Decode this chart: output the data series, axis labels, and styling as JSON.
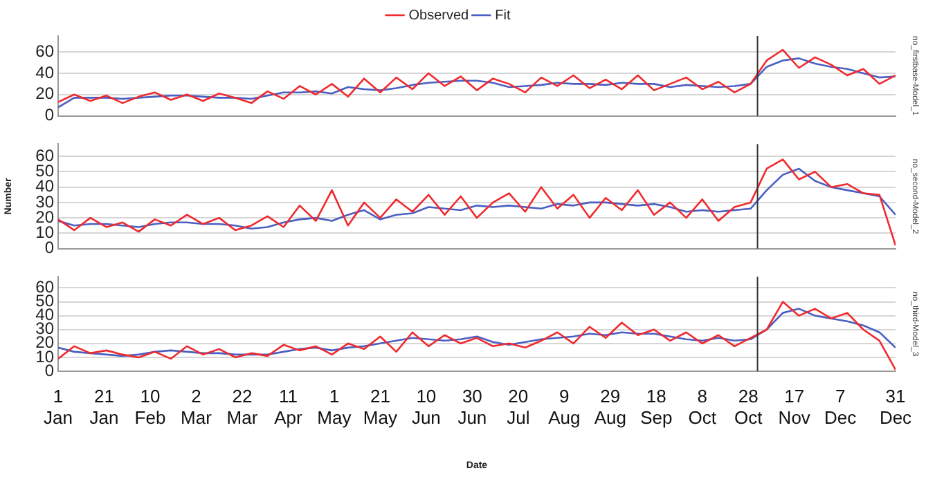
{
  "chart_data": [
    {
      "type": "line",
      "y2label": "no_firstbase-Model_1",
      "x": [
        "--01-01",
        "--01-08",
        "--01-15",
        "--01-22",
        "--01-29",
        "--02-05",
        "--02-12",
        "--02-19",
        "--02-26",
        "--03-05",
        "--03-12",
        "--03-19",
        "--03-26",
        "--04-02",
        "--04-09",
        "--04-16",
        "--04-23",
        "--04-30",
        "--05-07",
        "--05-14",
        "--05-21",
        "--05-28",
        "--06-04",
        "--06-11",
        "--06-18",
        "--06-25",
        "--07-02",
        "--07-09",
        "--07-16",
        "--07-23",
        "--07-30",
        "--08-06",
        "--08-13",
        "--08-20",
        "--08-27",
        "--09-03",
        "--09-10",
        "--09-17",
        "--09-24",
        "--10-01",
        "--10-08",
        "--10-15",
        "--10-22",
        "--10-29",
        "--11-05",
        "--11-12",
        "--11-19",
        "--11-26",
        "--12-03",
        "--12-10",
        "--12-17",
        "--12-24",
        "--12-31"
      ],
      "series": [
        {
          "name": "Observed",
          "color": "#f02a2e",
          "values": [
            13,
            20,
            14,
            19,
            12,
            18,
            22,
            15,
            20,
            14,
            21,
            17,
            12,
            23,
            16,
            28,
            20,
            30,
            18,
            35,
            22,
            36,
            25,
            40,
            28,
            37,
            24,
            35,
            30,
            22,
            36,
            28,
            38,
            26,
            34,
            25,
            38,
            24,
            30,
            36,
            25,
            32,
            22,
            30,
            52,
            62,
            45,
            55,
            48,
            38,
            44,
            30,
            38
          ]
        },
        {
          "name": "Fit",
          "color": "#4a5fc1",
          "values": [
            8,
            17,
            17,
            17,
            16,
            17,
            18,
            19,
            19,
            18,
            17,
            17,
            16,
            19,
            22,
            22,
            23,
            21,
            27,
            25,
            24,
            26,
            29,
            31,
            32,
            33,
            33,
            31,
            27,
            28,
            29,
            31,
            30,
            30,
            29,
            31,
            30,
            30,
            27,
            29,
            28,
            27,
            28,
            30,
            46,
            52,
            54,
            49,
            46,
            44,
            40,
            36,
            37
          ]
        }
      ],
      "xlim": [
        "--01-01",
        "--12-31"
      ],
      "ylim": [
        0,
        75
      ],
      "yticks": [
        0,
        20,
        40,
        60
      ],
      "grid": "y",
      "legend": "top",
      "tick_labels": "y",
      "ref_lines": [
        {
          "axis": "x",
          "value": "--11-01",
          "color": "#333333"
        }
      ]
    },
    {
      "type": "line",
      "y2label": "no_second-Model_2",
      "ylabel": "Number",
      "x": [
        "--01-01",
        "--01-08",
        "--01-15",
        "--01-22",
        "--01-29",
        "--02-05",
        "--02-12",
        "--02-19",
        "--02-26",
        "--03-05",
        "--03-12",
        "--03-19",
        "--03-26",
        "--04-02",
        "--04-09",
        "--04-16",
        "--04-23",
        "--04-30",
        "--05-07",
        "--05-14",
        "--05-21",
        "--05-28",
        "--06-04",
        "--06-11",
        "--06-18",
        "--06-25",
        "--07-02",
        "--07-09",
        "--07-16",
        "--07-23",
        "--07-30",
        "--08-06",
        "--08-13",
        "--08-20",
        "--08-27",
        "--09-03",
        "--09-10",
        "--09-17",
        "--09-24",
        "--10-01",
        "--10-08",
        "--10-15",
        "--10-22",
        "--10-29",
        "--11-05",
        "--11-12",
        "--11-19",
        "--11-26",
        "--12-03",
        "--12-10",
        "--12-17",
        "--12-24",
        "--12-31"
      ],
      "series": [
        {
          "color": "#f02a2e",
          "values": [
            19,
            12,
            20,
            14,
            17,
            11,
            19,
            15,
            22,
            16,
            20,
            12,
            15,
            21,
            14,
            28,
            18,
            38,
            15,
            30,
            20,
            32,
            24,
            35,
            22,
            34,
            20,
            30,
            36,
            24,
            40,
            26,
            35,
            20,
            33,
            25,
            38,
            22,
            30,
            20,
            32,
            18,
            27,
            30,
            52,
            58,
            45,
            50,
            40,
            42,
            36,
            35,
            2
          ]
        },
        {
          "color": "#4a5fc1",
          "values": [
            18,
            15,
            16,
            16,
            15,
            14,
            16,
            17,
            17,
            16,
            16,
            15,
            13,
            14,
            17,
            19,
            20,
            18,
            22,
            25,
            19,
            22,
            23,
            27,
            26,
            25,
            28,
            27,
            28,
            27,
            26,
            29,
            28,
            30,
            30,
            29,
            28,
            29,
            27,
            24,
            25,
            24,
            25,
            26,
            38,
            48,
            52,
            44,
            40,
            38,
            36,
            34,
            22
          ]
        }
      ],
      "xlim": [
        "--01-01",
        "--12-31"
      ],
      "ylim": [
        0,
        68
      ],
      "yticks": [
        0,
        10,
        20,
        30,
        40,
        50,
        60
      ],
      "grid": "y",
      "tick_labels": "y",
      "ref_lines": [
        {
          "axis": "x",
          "value": "--11-01",
          "color": "#333333"
        }
      ]
    },
    {
      "type": "line",
      "y2label": "no_third-Model_3",
      "xlabel": "Date",
      "x": [
        "--01-01",
        "--01-08",
        "--01-15",
        "--01-22",
        "--01-29",
        "--02-05",
        "--02-12",
        "--02-19",
        "--02-26",
        "--03-05",
        "--03-12",
        "--03-19",
        "--03-26",
        "--04-02",
        "--04-09",
        "--04-16",
        "--04-23",
        "--04-30",
        "--05-07",
        "--05-14",
        "--05-21",
        "--05-28",
        "--06-04",
        "--06-11",
        "--06-18",
        "--06-25",
        "--07-02",
        "--07-09",
        "--07-16",
        "--07-23",
        "--07-30",
        "--08-06",
        "--08-13",
        "--08-20",
        "--08-27",
        "--09-03",
        "--09-10",
        "--09-17",
        "--09-24",
        "--10-01",
        "--10-08",
        "--10-15",
        "--10-22",
        "--10-29",
        "--11-05",
        "--11-12",
        "--11-19",
        "--11-26",
        "--12-03",
        "--12-10",
        "--12-17",
        "--12-24",
        "--12-31"
      ],
      "series": [
        {
          "color": "#f02a2e",
          "values": [
            9,
            18,
            13,
            15,
            12,
            10,
            14,
            9,
            18,
            12,
            16,
            10,
            13,
            11,
            19,
            15,
            18,
            12,
            20,
            16,
            25,
            14,
            28,
            18,
            26,
            20,
            24,
            18,
            20,
            17,
            22,
            28,
            20,
            32,
            24,
            35,
            26,
            30,
            22,
            28,
            20,
            26,
            18,
            24,
            30,
            50,
            40,
            45,
            38,
            42,
            30,
            22,
            1
          ]
        },
        {
          "color": "#4a5fc1",
          "values": [
            17,
            14,
            13,
            12,
            11,
            12,
            14,
            15,
            14,
            13,
            13,
            12,
            12,
            12,
            14,
            16,
            17,
            15,
            17,
            18,
            20,
            22,
            24,
            23,
            22,
            23,
            25,
            21,
            19,
            21,
            23,
            24,
            25,
            27,
            26,
            28,
            27,
            27,
            25,
            23,
            22,
            24,
            22,
            23,
            30,
            42,
            45,
            40,
            38,
            36,
            33,
            28,
            17
          ]
        }
      ],
      "xlim": [
        "--01-01",
        "--12-31"
      ],
      "ylim": [
        0,
        68
      ],
      "yticks": [
        0,
        10,
        20,
        30,
        40,
        50,
        60
      ],
      "grid": "y",
      "xticks": [
        {
          "value": "--01-01",
          "label": "1 Jan"
        },
        {
          "value": "--01-21",
          "label": "21 Jan"
        },
        {
          "value": "--02-10",
          "label": "10 Feb"
        },
        {
          "value": "--03-02",
          "label": "2 Mar"
        },
        {
          "value": "--03-22",
          "label": "22 Mar"
        },
        {
          "value": "--04-11",
          "label": "11 Apr"
        },
        {
          "value": "--05-01",
          "label": "1 May"
        },
        {
          "value": "--05-21",
          "label": "21 May"
        },
        {
          "value": "--06-10",
          "label": "10 Jun"
        },
        {
          "value": "--06-30",
          "label": "30 Jun"
        },
        {
          "value": "--07-20",
          "label": "20 Jul"
        },
        {
          "value": "--08-09",
          "label": "9 Aug"
        },
        {
          "value": "--08-29",
          "label": "29 Aug"
        },
        {
          "value": "--09-18",
          "label": "18 Sep"
        },
        {
          "value": "--10-08",
          "label": "8 Oct"
        },
        {
          "value": "--10-28",
          "label": "28 Oct"
        },
        {
          "value": "--11-17",
          "label": "17 Nov"
        },
        {
          "value": "--12-07",
          "label": "7 Dec"
        },
        {
          "value": "--12-31",
          "label": "31 Dec"
        }
      ],
      "ref_lines": [
        {
          "axis": "x",
          "value": "--11-01",
          "color": "#333333"
        }
      ]
    }
  ]
}
